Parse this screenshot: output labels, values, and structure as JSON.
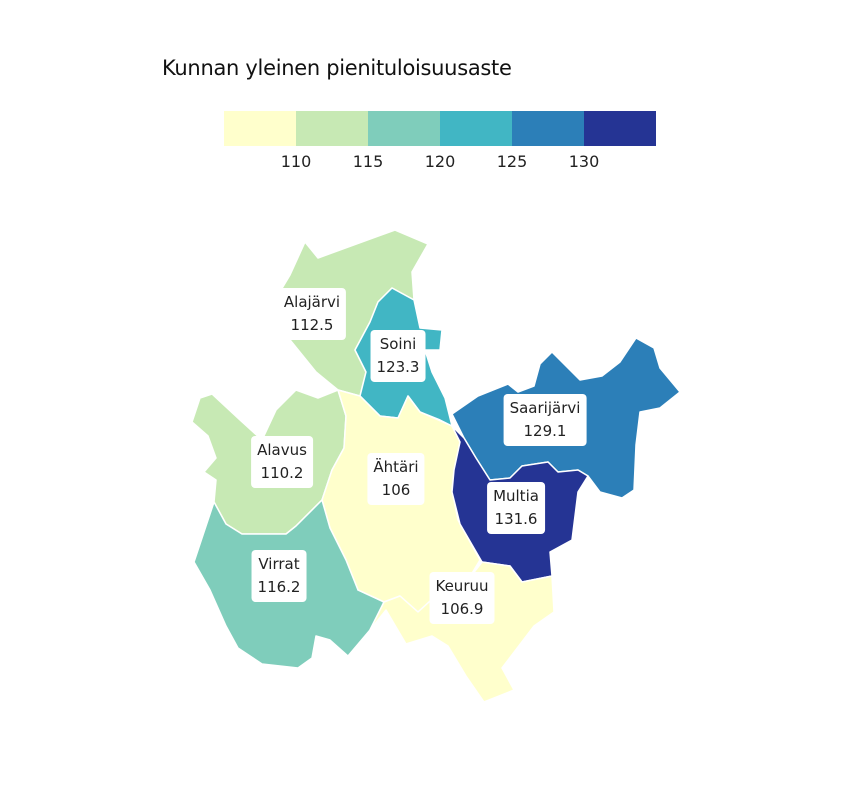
{
  "map": {
    "title": "Kunnan yleinen pienituloisuusaste"
  },
  "legend": {
    "colors": [
      "#ffffcc",
      "#c7e9b4",
      "#7fcdbb",
      "#41b6c4",
      "#2c7fb8",
      "#253494"
    ],
    "ticks": [
      "110",
      "115",
      "120",
      "125",
      "130"
    ]
  },
  "municipalities": [
    {
      "id": "alajarvi",
      "name": "Alajärvi",
      "value": "112.5",
      "color": "#c7e9b4"
    },
    {
      "id": "soini",
      "name": "Soini",
      "value": "123.3",
      "color": "#41b6c4"
    },
    {
      "id": "saarijarvi",
      "name": "Saarijärvi",
      "value": "129.1",
      "color": "#2c7fb8"
    },
    {
      "id": "alavus",
      "name": "Alavus",
      "value": "110.2",
      "color": "#c7e9b4"
    },
    {
      "id": "ahtari",
      "name": "Ähtäri",
      "value": "106",
      "color": "#ffffcc"
    },
    {
      "id": "multia",
      "name": "Multia",
      "value": "131.6",
      "color": "#253494"
    },
    {
      "id": "virrat",
      "name": "Virrat",
      "value": "116.2",
      "color": "#7fcdbb"
    },
    {
      "id": "keuruu",
      "name": "Keuruu",
      "value": "106.9",
      "color": "#ffffcc"
    }
  ]
}
